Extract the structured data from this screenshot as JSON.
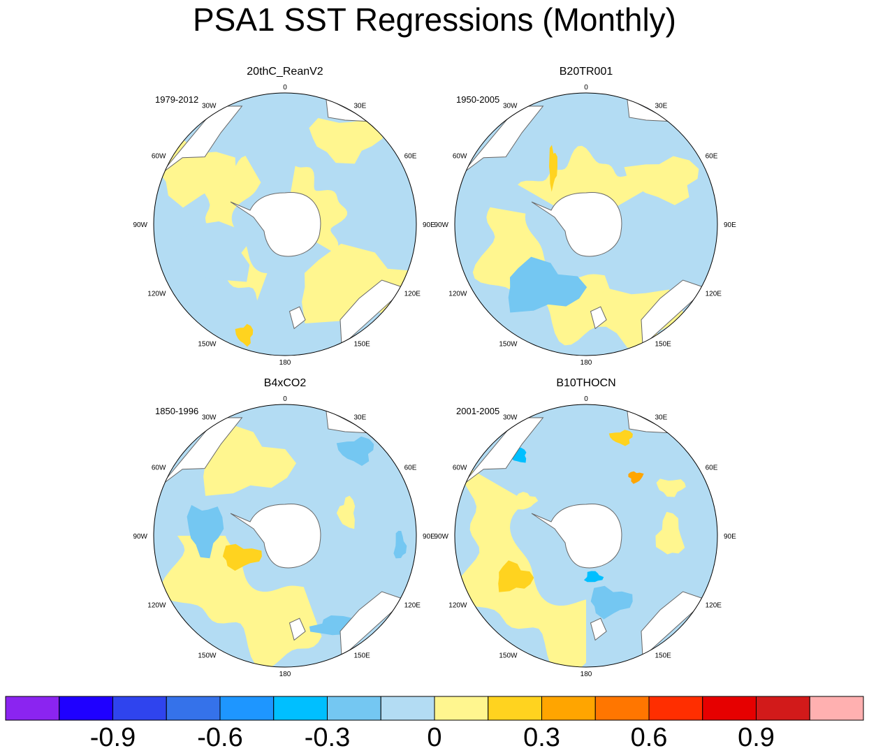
{
  "title": "PSA1 SST Regressions (Monthly)",
  "colors": {
    "ocean_background": "#b3dcf3",
    "land": "#ffffff",
    "coastline": "#666666"
  },
  "panels": [
    {
      "name": "20thC_ReanV2",
      "period": "1979-2012"
    },
    {
      "name": "B20TR001",
      "period": "1950-2005"
    },
    {
      "name": "B4xCO2",
      "period": "1850-1996"
    },
    {
      "name": "B10THOCN",
      "period": "2001-2005"
    }
  ],
  "longitude_labels": [
    "0",
    "30E",
    "60E",
    "90E",
    "120E",
    "150E",
    "180",
    "150W",
    "120W",
    "90W",
    "60W",
    "30W"
  ],
  "chart_data": {
    "type": "heatmap",
    "projection": "south polar stereographic",
    "variable": "SST regression onto PSA1",
    "colorbar": {
      "levels": [
        -1.05,
        -0.9,
        -0.75,
        -0.6,
        -0.45,
        -0.3,
        -0.15,
        0,
        0.15,
        0.3,
        0.45,
        0.6,
        0.75,
        0.9,
        1.05
      ],
      "colors": [
        "#8b24f0",
        "#1f00ff",
        "#2f44ee",
        "#3572ea",
        "#1e96ff",
        "#00bfff",
        "#74c7f2",
        "#b3dcf3",
        "#fff68f",
        "#ffd31f",
        "#ffa500",
        "#ff7600",
        "#ff2e00",
        "#e60000",
        "#d21a1a",
        "#ffb0b0"
      ],
      "tick_labels": [
        "-0.9",
        "-0.6",
        "-0.3",
        "0",
        "0.3",
        "0.6",
        "0.9"
      ]
    }
  }
}
